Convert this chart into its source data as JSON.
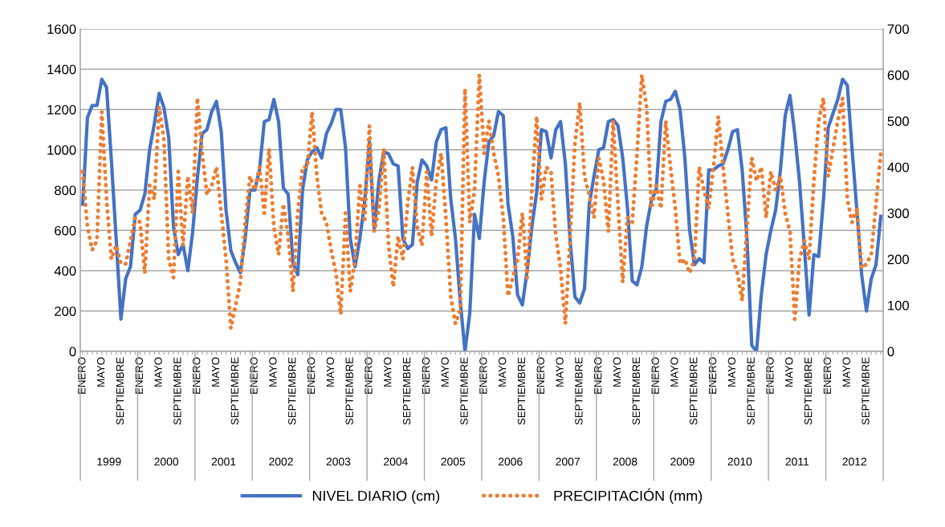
{
  "chart_data": {
    "type": "line",
    "categories": [
      "ENERO",
      null,
      null,
      null,
      "MAYO",
      null,
      null,
      null,
      "SEPTIEMBRE",
      null,
      null,
      null,
      "ENERO",
      null,
      null,
      null,
      "MAYO",
      null,
      null,
      null,
      "SEPTIEMBRE",
      null,
      null,
      null,
      "ENERO",
      null,
      null,
      null,
      "MAYO",
      null,
      null,
      null,
      "SEPTIEMBRE",
      null,
      null,
      null,
      "ENERO",
      null,
      null,
      null,
      "MAYO",
      null,
      null,
      null,
      "SEPTIEMBRE",
      null,
      null,
      null,
      "ENERO",
      null,
      null,
      null,
      "MAYO",
      null,
      null,
      null,
      "SEPTIEMBRE",
      null,
      null,
      null,
      "ENERO",
      null,
      null,
      null,
      "MAYO",
      null,
      null,
      null,
      "SEPTIEMBRE",
      null,
      null,
      null,
      "ENERO",
      null,
      null,
      null,
      "MAYO",
      null,
      null,
      null,
      "SEPTIEMBRE",
      null,
      null,
      null,
      "ENERO",
      null,
      null,
      null,
      "MAYO",
      null,
      null,
      null,
      "SEPTIEMBRE",
      null,
      null,
      null,
      "ENERO",
      null,
      null,
      null,
      "MAYO",
      null,
      null,
      null,
      "SEPTIEMBRE",
      null,
      null,
      null,
      "ENERO",
      null,
      null,
      null,
      "MAYO",
      null,
      null,
      null,
      "SEPTIEMBRE",
      null,
      null,
      null,
      "ENERO",
      null,
      null,
      null,
      "MAYO",
      null,
      null,
      null,
      "SEPTIEMBRE",
      null,
      null,
      null,
      "ENERO",
      null,
      null,
      null,
      "MAYO",
      null,
      null,
      null,
      "SEPTIEMBRE",
      null,
      null,
      null,
      "ENERO",
      null,
      null,
      null,
      "MAYO",
      null,
      null,
      null,
      "SEPTIEMBRE",
      null,
      null,
      null,
      "ENERO",
      null,
      null,
      null,
      "MAYO",
      null,
      null,
      null,
      "SEPTIEMBRE",
      null,
      null,
      null
    ],
    "annotations": [
      "1999",
      "2000",
      "2001",
      "2002",
      "2003",
      "2004",
      "2005",
      "2006",
      "2007",
      "2008",
      "2009",
      "2010",
      "2011",
      "2012"
    ],
    "series": [
      {
        "name": "NIVEL DIARIO (cm)",
        "color": "#4472c4",
        "line_style": "solid",
        "values": [
          730,
          1160,
          1220,
          1220,
          1350,
          1310,
          950,
          560,
          160,
          360,
          420,
          680,
          700,
          780,
          1000,
          1130,
          1280,
          1210,
          1060,
          620,
          480,
          530,
          400,
          590,
          860,
          1080,
          1100,
          1190,
          1240,
          1090,
          700,
          500,
          440,
          390,
          560,
          800,
          800,
          900,
          1140,
          1150,
          1250,
          1140,
          810,
          780,
          440,
          380,
          800,
          950,
          990,
          1010,
          960,
          1080,
          1130,
          1200,
          1200,
          1010,
          560,
          420,
          560,
          740,
          1040,
          600,
          850,
          990,
          980,
          930,
          920,
          560,
          510,
          530,
          840,
          950,
          920,
          850,
          1040,
          1100,
          1110,
          760,
          560,
          250,
          0,
          190,
          680,
          560,
          840,
          1040,
          1070,
          1190,
          1170,
          730,
          570,
          280,
          230,
          400,
          620,
          790,
          1100,
          1090,
          960,
          1100,
          1140,
          930,
          550,
          270,
          240,
          310,
          730,
          870,
          1000,
          1010,
          1140,
          1150,
          1120,
          960,
          710,
          350,
          330,
          420,
          620,
          750,
          800,
          1140,
          1240,
          1250,
          1290,
          1200,
          960,
          600,
          430,
          460,
          440,
          900,
          900,
          920,
          930,
          1000,
          1090,
          1100,
          900,
          560,
          30,
          0,
          280,
          480,
          600,
          700,
          900,
          1170,
          1270,
          1080,
          840,
          520,
          180,
          480,
          470,
          750,
          1110,
          1180,
          1250,
          1350,
          1320,
          1000,
          700,
          380,
          200,
          360,
          430,
          670
        ]
      },
      {
        "name": "PRECIPITACIÓN (mm)",
        "color": "#ed7d31",
        "axis": "y2",
        "line_style": "dotted",
        "values": [
          390,
          270,
          220,
          240,
          520,
          330,
          200,
          230,
          190,
          190,
          240,
          290,
          280,
          170,
          360,
          330,
          530,
          460,
          200,
          160,
          390,
          230,
          380,
          300,
          550,
          430,
          340,
          360,
          400,
          300,
          200,
          50,
          100,
          150,
          280,
          380,
          350,
          400,
          300,
          440,
          270,
          210,
          320,
          250,
          130,
          300,
          400,
          400,
          520,
          380,
          300,
          280,
          220,
          170,
          80,
          300,
          130,
          200,
          360,
          280,
          490,
          260,
          310,
          440,
          230,
          140,
          250,
          200,
          320,
          400,
          270,
          230,
          390,
          250,
          370,
          430,
          290,
          120,
          60,
          90,
          570,
          280,
          350,
          600,
          430,
          500,
          430,
          380,
          290,
          120,
          160,
          200,
          300,
          160,
          350,
          510,
          330,
          400,
          390,
          250,
          180,
          60,
          250,
          450,
          540,
          380,
          340,
          290,
          420,
          370,
          260,
          500,
          320,
          150,
          290,
          280,
          430,
          600,
          530,
          310,
          360,
          310,
          500,
          400,
          310,
          190,
          200,
          170,
          200,
          400,
          350,
          310,
          400,
          510,
          400,
          300,
          200,
          170,
          110,
          270,
          420,
          370,
          400,
          290,
          390,
          350,
          380,
          300,
          260,
          70,
          200,
          240,
          200,
          370,
          500,
          550,
          380,
          440,
          500,
          550,
          330,
          280,
          310,
          180,
          190,
          210,
          320,
          430
        ]
      }
    ],
    "ylim": [
      0,
      1600
    ],
    "yticks": [
      0,
      200,
      400,
      600,
      800,
      1000,
      1200,
      1400,
      1600
    ],
    "y2lim": [
      0,
      700
    ],
    "y2ticks": [
      0,
      100,
      200,
      300,
      400,
      500,
      600,
      700
    ],
    "grid": "y",
    "legend": "bottom"
  }
}
